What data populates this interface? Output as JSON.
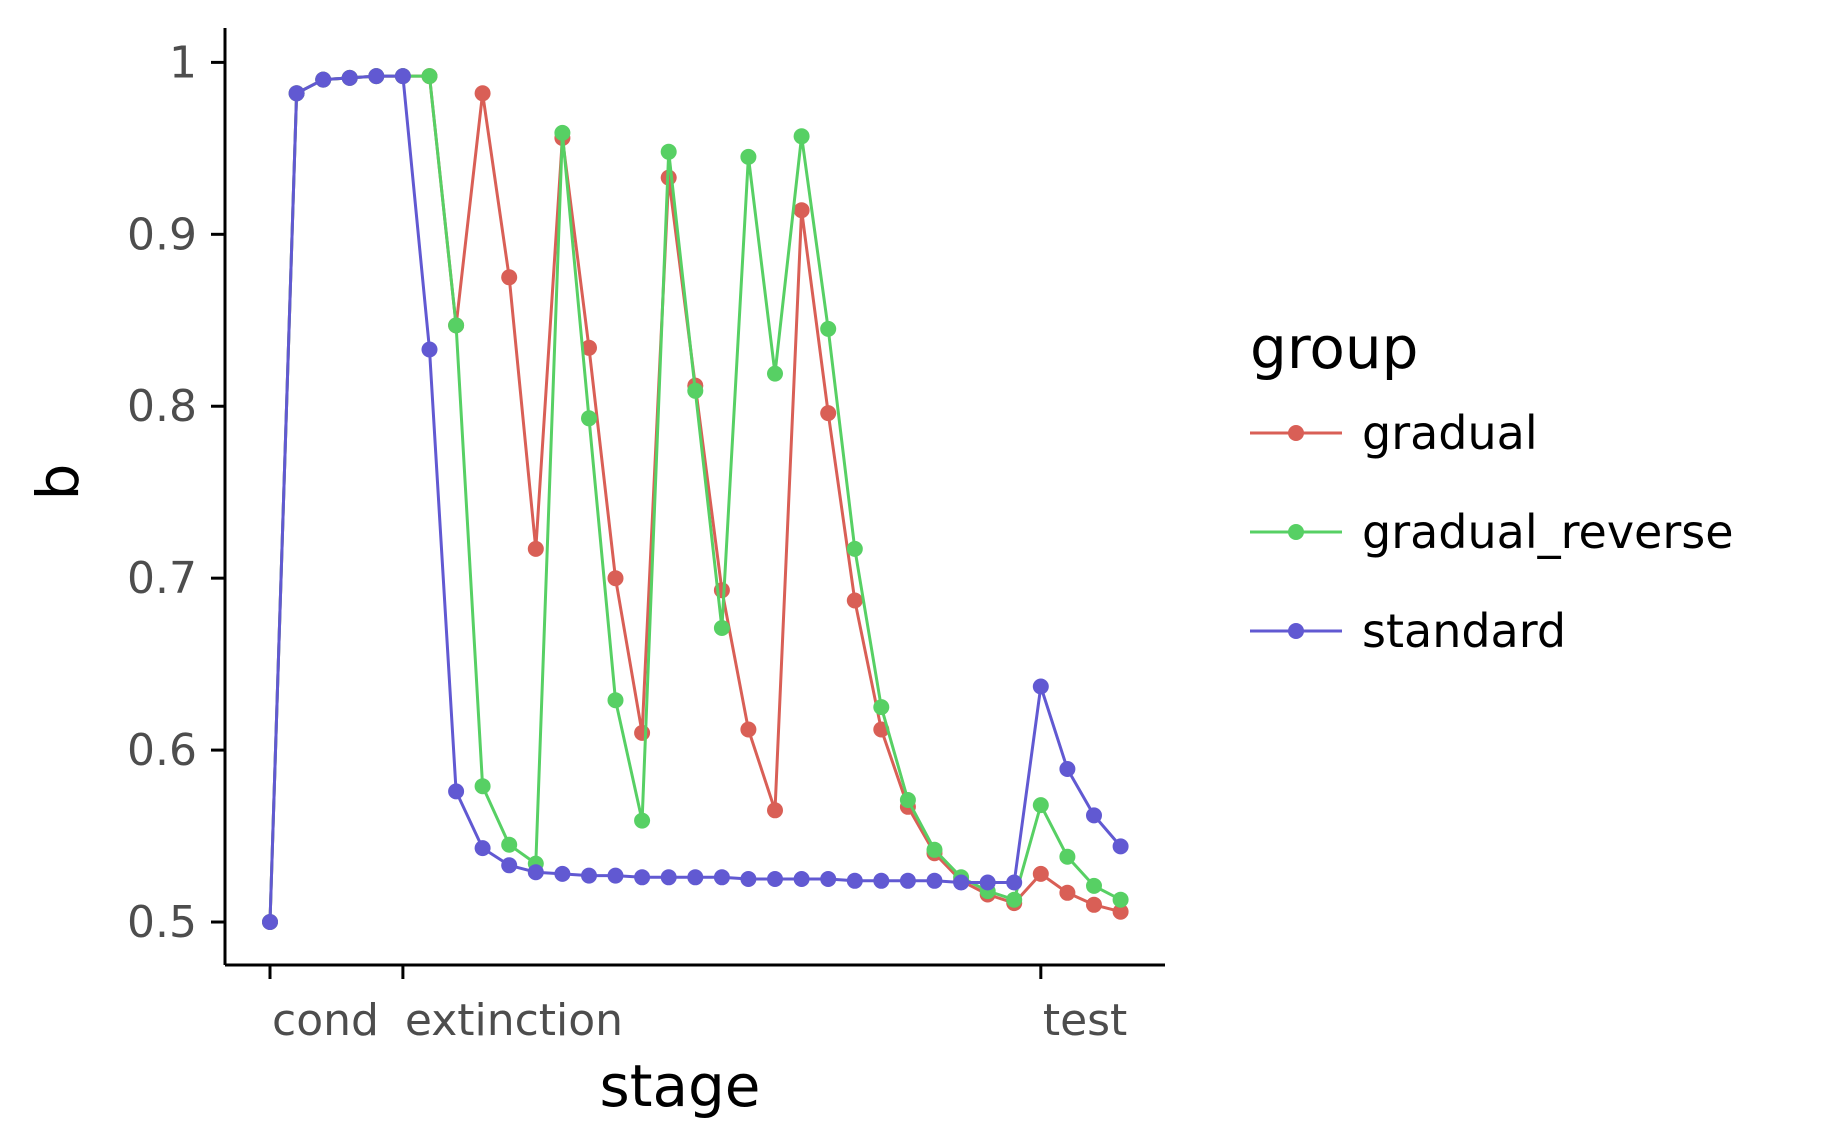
{
  "chart_data": {
    "type": "line",
    "xlabel": "stage",
    "ylabel": "b",
    "ylim": [
      0.475,
      1.02
    ],
    "yticks": [
      0.5,
      0.6,
      0.7,
      0.8,
      0.9,
      1
    ],
    "ytick_labels": [
      "0.5",
      "0.6",
      "0.7",
      "0.8",
      "0.9",
      "1"
    ],
    "xticks": [
      {
        "label": "cond",
        "x": 0
      },
      {
        "label": "extinction",
        "x": 5
      },
      {
        "label": "test",
        "x": 29
      }
    ],
    "x": [
      0,
      1,
      2,
      3,
      4,
      5,
      6,
      7,
      8,
      9,
      10,
      11,
      12,
      13,
      14,
      15,
      16,
      17,
      18,
      19,
      20,
      21,
      22,
      23,
      24,
      25,
      26,
      27,
      28,
      29,
      30,
      31,
      32
    ],
    "grid": false,
    "legend": {
      "title": "group",
      "position": "right"
    },
    "series": [
      {
        "name": "gradual",
        "color": "#d95f56",
        "values": [
          0.5,
          0.982,
          0.99,
          0.991,
          0.992,
          0.992,
          0.992,
          0.847,
          0.982,
          0.875,
          0.717,
          0.956,
          0.834,
          0.7,
          0.61,
          0.933,
          0.812,
          0.693,
          0.612,
          0.565,
          0.914,
          0.796,
          0.687,
          0.612,
          0.567,
          0.54,
          0.524,
          0.516,
          0.511,
          0.528,
          0.517,
          0.51,
          0.506
        ]
      },
      {
        "name": "gradual_reverse",
        "color": "#57d064",
        "values": [
          0.5,
          0.982,
          0.99,
          0.991,
          0.992,
          0.992,
          0.992,
          0.847,
          0.579,
          0.545,
          0.534,
          0.959,
          0.793,
          0.629,
          0.559,
          0.948,
          0.809,
          0.671,
          0.945,
          0.819,
          0.957,
          0.845,
          0.717,
          0.625,
          0.571,
          0.542,
          0.526,
          0.518,
          0.513,
          0.568,
          0.538,
          0.521,
          0.513
        ]
      },
      {
        "name": "standard",
        "color": "#6159d2",
        "values": [
          0.5,
          0.982,
          0.99,
          0.991,
          0.992,
          0.992,
          0.833,
          0.576,
          0.543,
          0.533,
          0.529,
          0.528,
          0.527,
          0.527,
          0.526,
          0.526,
          0.526,
          0.526,
          0.525,
          0.525,
          0.525,
          0.525,
          0.524,
          0.524,
          0.524,
          0.524,
          0.523,
          0.523,
          0.523,
          0.637,
          0.589,
          0.562,
          0.544
        ]
      }
    ]
  }
}
